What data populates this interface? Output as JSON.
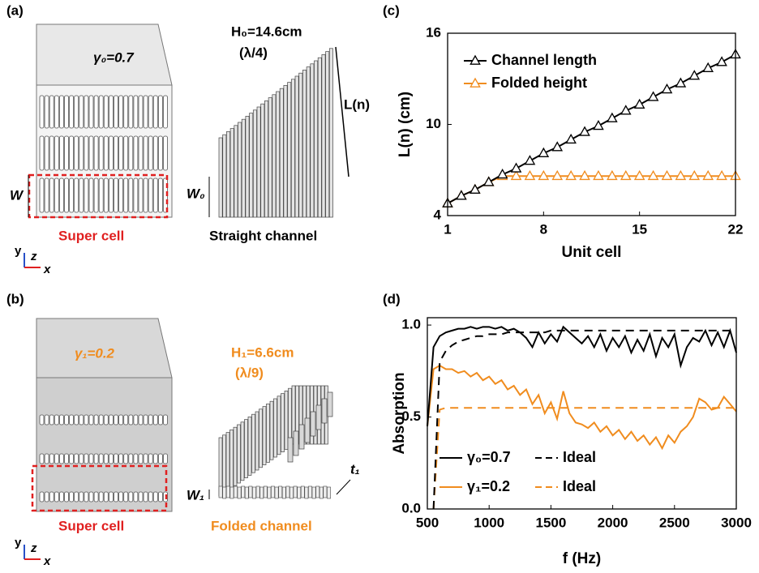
{
  "panels": {
    "a": {
      "label": "(a)",
      "gamma": "γ₀=0.7",
      "w": "W",
      "cell": "Super cell",
      "height": "H₀=14.6cm",
      "ratio": "(λ/4)",
      "length": "L(n)",
      "w0": "W₀",
      "channel": "Straight channel",
      "axes": {
        "y": "y",
        "z": "z",
        "x": "x"
      }
    },
    "b": {
      "label": "(b)",
      "gamma": "γ₁=0.2",
      "cell": "Super cell",
      "height": "H₁=6.6cm",
      "ratio": "(λ/9)",
      "t1": "t₁",
      "w1": "W₁",
      "channel": "Folded channel",
      "axes": {
        "y": "y",
        "z": "z",
        "x": "x"
      }
    },
    "c": {
      "label": "(c)"
    },
    "d": {
      "label": "(d)"
    }
  },
  "chart_data": [
    {
      "type": "line",
      "marker": "triangle",
      "xlabel": "Unit cell",
      "ylabel": "L(n) (cm)",
      "x": [
        1,
        2,
        3,
        4,
        5,
        6,
        7,
        8,
        9,
        10,
        11,
        12,
        13,
        14,
        15,
        16,
        17,
        18,
        19,
        20,
        21,
        22
      ],
      "series": [
        {
          "name": "Channel length",
          "color": "#000000",
          "values": [
            4.8,
            5.3,
            5.7,
            6.2,
            6.7,
            7.1,
            7.6,
            8.1,
            8.5,
            9.0,
            9.5,
            9.9,
            10.4,
            10.9,
            11.3,
            11.8,
            12.3,
            12.7,
            13.2,
            13.7,
            14.1,
            14.6
          ]
        },
        {
          "name": "Folded height",
          "color": "#f08c1e",
          "values": [
            4.8,
            5.3,
            5.7,
            6.2,
            6.6,
            6.6,
            6.6,
            6.6,
            6.6,
            6.6,
            6.6,
            6.6,
            6.6,
            6.6,
            6.6,
            6.6,
            6.6,
            6.6,
            6.6,
            6.6,
            6.6,
            6.6
          ]
        }
      ],
      "xlim": [
        1,
        22
      ],
      "xticks": [
        1,
        8,
        15,
        22
      ],
      "ylim": [
        4,
        16
      ],
      "yticks": [
        4,
        10,
        16
      ],
      "legend": "upper left"
    },
    {
      "type": "line",
      "xlabel": "f (Hz)",
      "ylabel": "Absorption",
      "legend_columns": 2,
      "x": [
        500,
        550,
        600,
        650,
        700,
        750,
        800,
        850,
        900,
        950,
        1000,
        1050,
        1100,
        1150,
        1200,
        1250,
        1300,
        1350,
        1400,
        1450,
        1500,
        1550,
        1600,
        1650,
        1700,
        1750,
        1800,
        1850,
        1900,
        1950,
        2000,
        2050,
        2100,
        2150,
        2200,
        2250,
        2300,
        2350,
        2400,
        2450,
        2500,
        2550,
        2600,
        2650,
        2700,
        2750,
        2800,
        2850,
        2900,
        2950,
        3000
      ],
      "series": [
        {
          "name": "γ₀=0.7",
          "color": "#000000",
          "values": [
            0.45,
            0.88,
            0.94,
            0.96,
            0.97,
            0.98,
            0.98,
            0.99,
            0.98,
            0.99,
            0.99,
            0.98,
            0.99,
            0.97,
            0.98,
            0.96,
            0.93,
            0.88,
            0.96,
            0.9,
            0.95,
            0.91,
            0.99,
            0.96,
            0.93,
            0.9,
            0.94,
            0.88,
            0.95,
            0.86,
            0.93,
            0.88,
            0.94,
            0.85,
            0.92,
            0.86,
            0.95,
            0.83,
            0.93,
            0.88,
            0.95,
            0.78,
            0.88,
            0.93,
            0.91,
            0.97,
            0.89,
            0.96,
            0.88,
            0.97,
            0.85
          ]
        },
        {
          "name": "Ideal",
          "color": "#000000",
          "dash": true,
          "values": [
            null,
            0.0,
            0.8,
            0.86,
            0.89,
            0.91,
            0.92,
            0.93,
            0.94,
            0.94,
            0.95,
            0.95,
            0.95,
            0.96,
            0.96,
            0.96,
            0.96,
            0.96,
            0.96,
            0.96,
            0.97,
            0.97,
            0.97,
            0.97,
            0.97,
            0.97,
            0.97,
            0.97,
            0.97,
            0.97,
            0.97,
            0.97,
            0.97,
            0.97,
            0.97,
            0.97,
            0.97,
            0.97,
            0.97,
            0.97,
            0.97,
            0.97,
            0.97,
            0.97,
            0.97,
            0.97,
            0.97,
            0.97,
            0.97,
            0.97,
            0.97
          ]
        },
        {
          "name": "γ₁=0.2",
          "color": "#f08c1e",
          "values": [
            0.45,
            0.76,
            0.78,
            0.76,
            0.76,
            0.74,
            0.75,
            0.72,
            0.74,
            0.7,
            0.72,
            0.68,
            0.7,
            0.65,
            0.67,
            0.62,
            0.65,
            0.57,
            0.62,
            0.52,
            0.58,
            0.49,
            0.64,
            0.52,
            0.47,
            0.46,
            0.44,
            0.47,
            0.42,
            0.45,
            0.4,
            0.43,
            0.38,
            0.42,
            0.37,
            0.4,
            0.35,
            0.39,
            0.33,
            0.4,
            0.36,
            0.42,
            0.45,
            0.5,
            0.6,
            0.58,
            0.54,
            0.55,
            0.61,
            0.57,
            0.53
          ]
        },
        {
          "name": "Ideal",
          "color": "#f08c1e",
          "dash": true,
          "values": [
            null,
            0.0,
            0.54,
            0.55,
            0.55,
            0.55,
            0.55,
            0.55,
            0.55,
            0.55,
            0.55,
            0.55,
            0.55,
            0.55,
            0.55,
            0.55,
            0.55,
            0.55,
            0.55,
            0.55,
            0.55,
            0.55,
            0.55,
            0.55,
            0.55,
            0.55,
            0.55,
            0.55,
            0.55,
            0.55,
            0.55,
            0.55,
            0.55,
            0.55,
            0.55,
            0.55,
            0.55,
            0.55,
            0.55,
            0.55,
            0.55,
            0.55,
            0.55,
            0.55,
            0.55,
            0.55,
            0.55,
            0.55,
            0.55,
            0.55,
            0.55
          ]
        }
      ],
      "xlim": [
        500,
        3000
      ],
      "xticks": [
        500,
        1000,
        1500,
        2000,
        2500,
        3000
      ],
      "ylim": [
        0,
        1.04
      ],
      "yticks": [
        {
          "value": 0,
          "label": "0.0"
        },
        {
          "value": 0.5,
          "label": "0.5"
        },
        {
          "value": 1,
          "label": "1.0"
        }
      ],
      "legend": "lower left"
    }
  ]
}
